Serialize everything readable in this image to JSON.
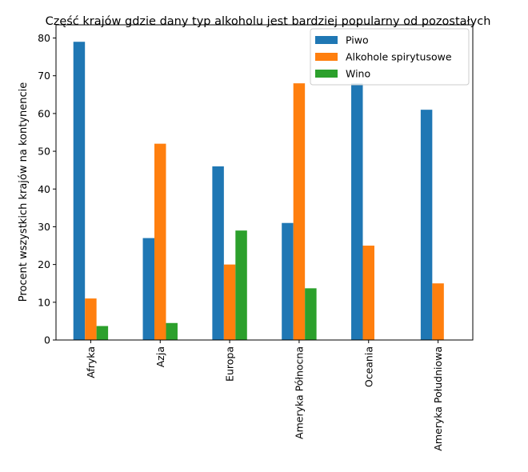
{
  "chart_data": {
    "type": "bar",
    "title": "Część krajów gdzie dany typ alkoholu jest bardziej popularny od pozostałych",
    "xlabel": "",
    "ylabel": "Procent wszystkich krajów na kontynencie",
    "categories": [
      "Afryka",
      "Azja",
      "Europa",
      "Ameryka Północna",
      "Oceania",
      "Ameryka Południowa"
    ],
    "series": [
      {
        "name": "Piwo",
        "color": "#1f77b4",
        "values": [
          79,
          27,
          46,
          31,
          68,
          61
        ]
      },
      {
        "name": "Alkohole spirytusowe",
        "color": "#ff7f0e",
        "values": [
          11,
          52,
          20,
          68,
          25,
          15
        ]
      },
      {
        "name": "Wino",
        "color": "#2ca02c",
        "values": [
          3.7,
          4.5,
          29,
          13.7,
          0,
          0
        ]
      }
    ],
    "ylim": [
      0,
      83.5
    ],
    "yticks": [
      0,
      10,
      20,
      30,
      40,
      50,
      60,
      70,
      80
    ],
    "grid": false,
    "legend_position": "top-right"
  }
}
